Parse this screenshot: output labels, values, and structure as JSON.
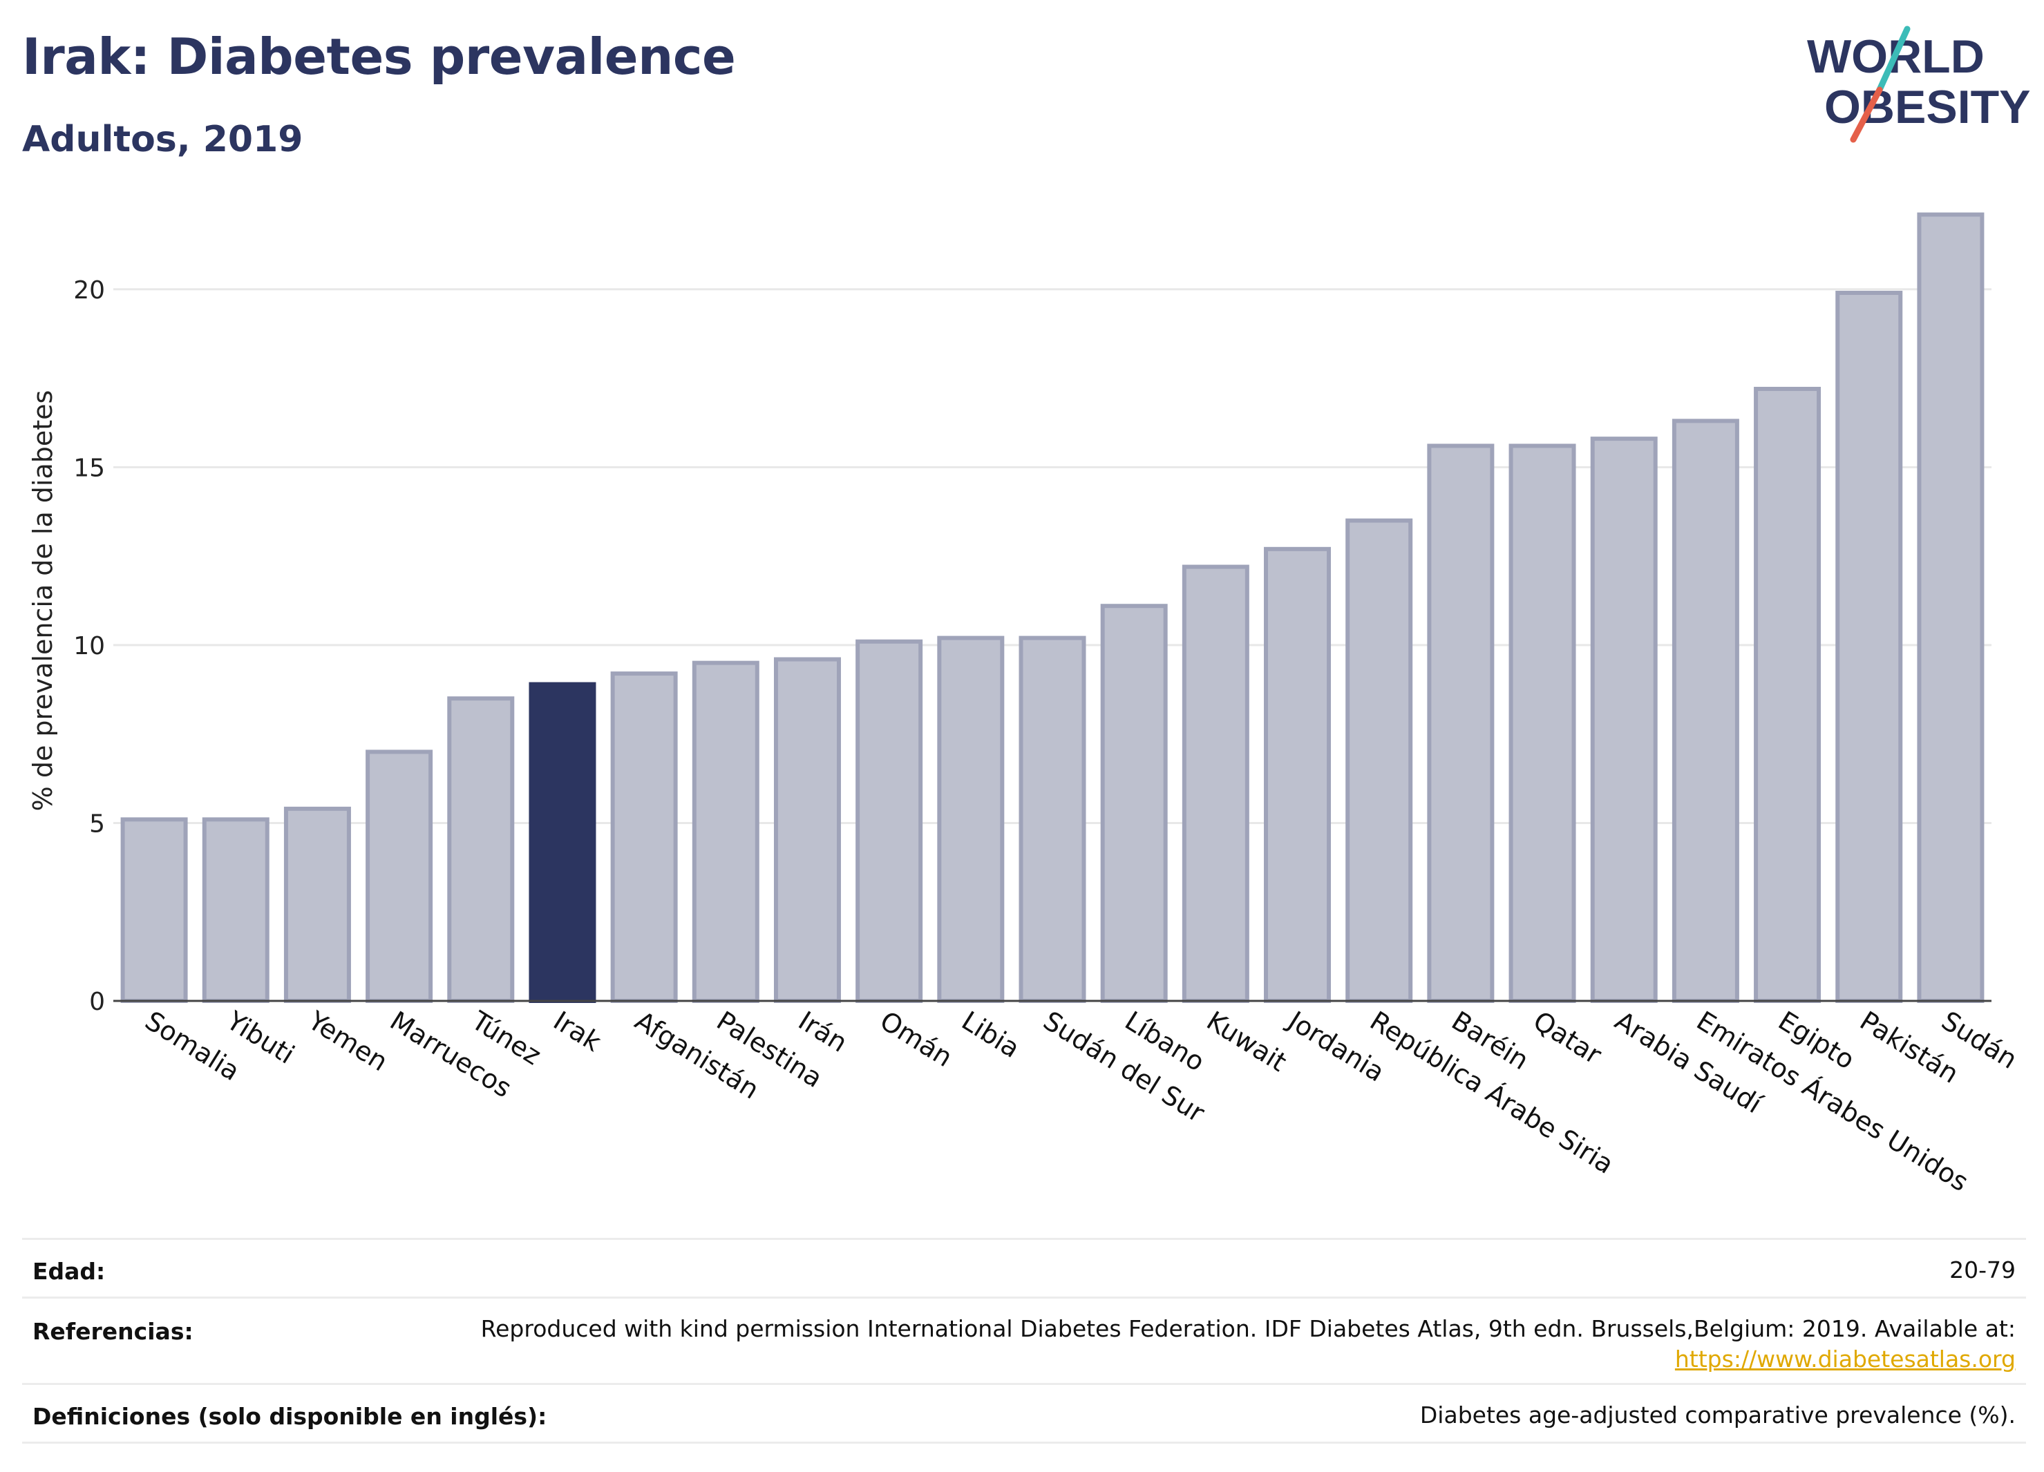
{
  "header": {
    "title": "Irak: Diabetes prevalence",
    "subtitle": "Adultos, 2019",
    "logo_line1": "WORLD",
    "logo_line2": "OBESITY"
  },
  "colors": {
    "highlight": "#2c3560",
    "bar": "#bdc0ce",
    "bar_stroke": "#9fa3b9",
    "gridline": "#e8e8e8",
    "logo_text": "#2c3560",
    "logo_teal": "#3cbcb8",
    "logo_red": "#e5604a"
  },
  "chart_data": {
    "type": "bar",
    "ylabel": "% de prevalencia de la diabetes",
    "ylim": [
      0,
      22.5
    ],
    "yticks": [
      0,
      5,
      10,
      15,
      20
    ],
    "grid": true,
    "highlight": "Irak",
    "categories": [
      "Somalia",
      "Yibuti",
      "Yemen",
      "Marruecos",
      "Túnez",
      "Irak",
      "Afganistán",
      "Palestina",
      "Irán",
      "Omán",
      "Libia",
      "Sudán del Sur",
      "Líbano",
      "Kuwait",
      "Jordania",
      "República Árabe Siria",
      "Baréin",
      "Qatar",
      "Arabia Saudí",
      "Emiratos Árabes Unidos",
      "Egipto",
      "Pakistán",
      "Sudán"
    ],
    "values": [
      5.1,
      5.1,
      5.4,
      7.0,
      8.5,
      8.9,
      9.2,
      9.5,
      9.6,
      10.1,
      10.2,
      10.2,
      11.1,
      12.2,
      12.7,
      13.5,
      15.6,
      15.6,
      15.8,
      16.3,
      17.2,
      19.9,
      22.1
    ]
  },
  "footer": {
    "rows": [
      {
        "label": "Edad:",
        "value": "20-79"
      },
      {
        "label": "Referencias:",
        "value": "Reproduced with kind permission International Diabetes Federation. IDF Diabetes Atlas, 9th edn. Brussels,Belgium: 2019. Available at:",
        "link": "https://www.diabetesatlas.org"
      },
      {
        "label": "Definiciones (solo disponible en inglés):",
        "value": "Diabetes age-adjusted comparative prevalence (%)."
      }
    ]
  }
}
